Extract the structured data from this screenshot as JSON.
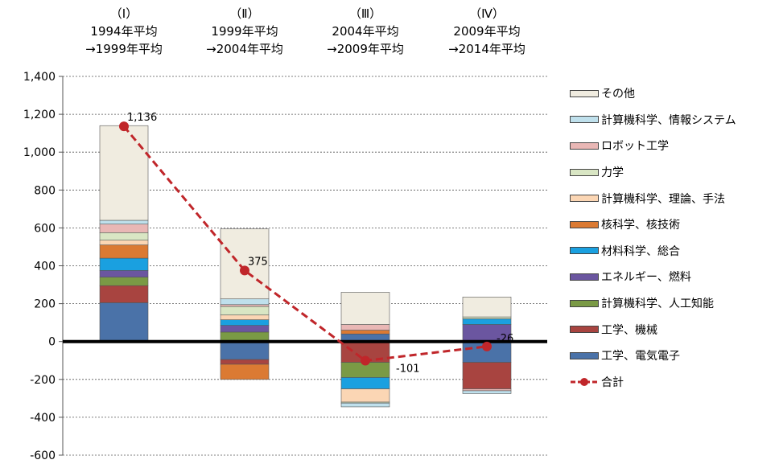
{
  "chart_data": {
    "type": "bar",
    "stacked": true,
    "categories": [
      {
        "roman": "（Ⅰ）",
        "line1": "1994年平均",
        "line2": "→1999年平均"
      },
      {
        "roman": "（Ⅱ）",
        "line1": "1999年平均",
        "line2": "→2004年平均"
      },
      {
        "roman": "（Ⅲ）",
        "line1": "2004年平均",
        "line2": "→2009年平均"
      },
      {
        "roman": "（Ⅳ）",
        "line1": "2009年平均",
        "line2": "→2014年平均"
      }
    ],
    "ylim": [
      -600,
      1400
    ],
    "yticks": [
      -600,
      -400,
      -200,
      0,
      200,
      400,
      600,
      800,
      1000,
      1200,
      1400
    ],
    "ytick_labels": [
      "-600",
      "-400",
      "-200",
      "0",
      "200",
      "400",
      "600",
      "800",
      "1,000",
      "1,200",
      "1,400"
    ],
    "grid": "horizontal-dashed",
    "legend_position": "right",
    "series": [
      {
        "name": "工学、電気電子",
        "color": "#4a72a8",
        "values": [
          205,
          -95,
          40,
          -110
        ]
      },
      {
        "name": "工学、機械",
        "color": "#a84440",
        "values": [
          90,
          -25,
          -110,
          -140
        ]
      },
      {
        "name": "計算機科学、人工知能",
        "color": "#7a9a45",
        "values": [
          45,
          50,
          -80,
          0
        ]
      },
      {
        "name": "エネルギー、燃料",
        "color": "#6b56a0",
        "values": [
          35,
          35,
          0,
          90
        ]
      },
      {
        "name": "材料科学、総合",
        "color": "#1aa0e0",
        "values": [
          65,
          30,
          -60,
          30
        ]
      },
      {
        "name": "核科学、核技術",
        "color": "#db7a33",
        "values": [
          70,
          -80,
          20,
          0
        ]
      },
      {
        "name": "計算機科学、理論、手法",
        "color": "#fbd6b4",
        "values": [
          25,
          25,
          -70,
          0
        ]
      },
      {
        "name": "力学",
        "color": "#d9e6c4",
        "values": [
          40,
          45,
          -5,
          10
        ]
      },
      {
        "name": "ロボット工学",
        "color": "#e9b7b5",
        "values": [
          45,
          10,
          30,
          -10
        ]
      },
      {
        "name": "計算機科学、情報システム",
        "color": "#bfe0ec",
        "values": [
          20,
          30,
          -20,
          -15
        ]
      },
      {
        "name": "その他",
        "color": "#f0ece0",
        "values": [
          500,
          370,
          170,
          105
        ]
      }
    ],
    "line_series": {
      "name": "合計",
      "color": "#c0262a",
      "values": [
        1136,
        375,
        -101,
        -26
      ],
      "labels": [
        "1,136",
        "375",
        "-101",
        "-26"
      ]
    }
  }
}
